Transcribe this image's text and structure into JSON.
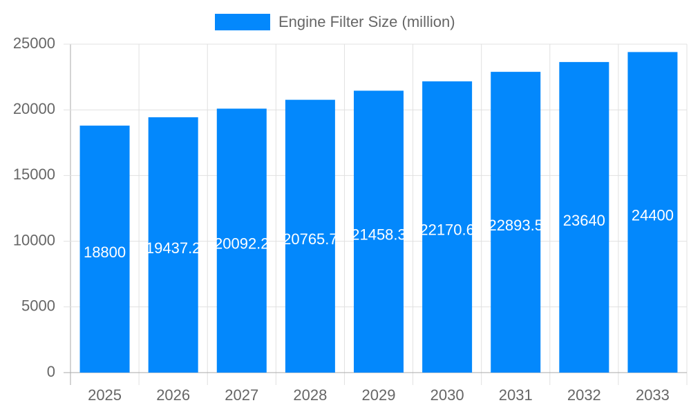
{
  "chart_data": {
    "type": "bar",
    "series": [
      {
        "name": "Engine Filter Size (million)",
        "color": "#0388fc",
        "values": [
          18800,
          19437.2,
          20092.2,
          20765.7,
          21458.3,
          22170.6,
          22893.5,
          23640,
          24400
        ]
      }
    ],
    "categories": [
      "2025",
      "2026",
      "2027",
      "2028",
      "2029",
      "2030",
      "2031",
      "2032",
      "2033"
    ],
    "ylim": [
      0,
      25000
    ],
    "yticks": [
      0,
      5000,
      10000,
      15000,
      20000,
      25000
    ],
    "grid": true
  }
}
